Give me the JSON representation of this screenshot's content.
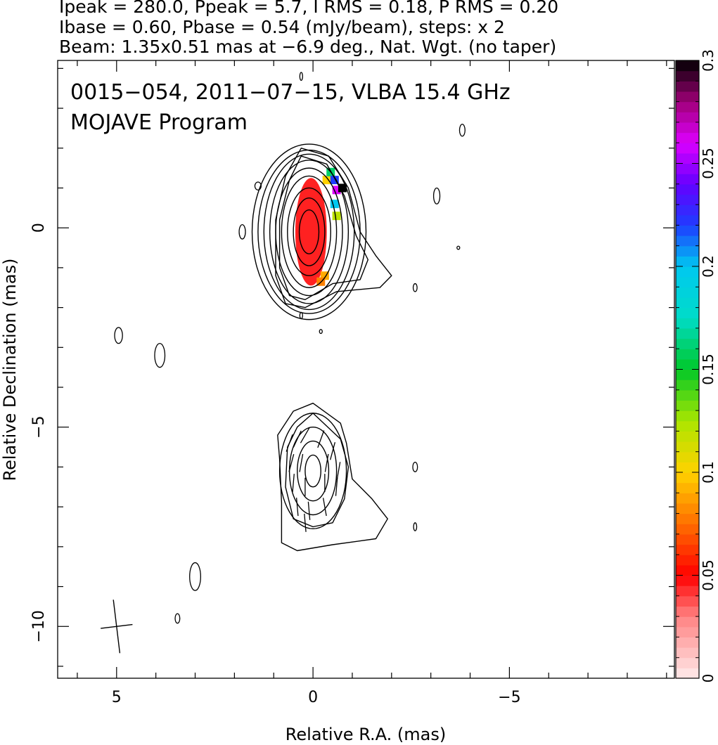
{
  "header": {
    "line1": "Ipeak = 280.0, Ppeak = 5.7, I RMS = 0.18, P RMS = 0.20",
    "line2": "Ibase = 0.60, Pbase = 0.54 (mJy/beam), steps: x 2",
    "line3": "Beam: 1.35x0.51 mas at −6.9 deg., Nat. Wgt. (no taper)"
  },
  "annotation": {
    "line1": "0015−054, 2011−07−15, VLBA 15.4 GHz",
    "line2": "MOJAVE Program"
  },
  "colorbar": {
    "min": 0,
    "max": 0.3,
    "tick_labels": [
      "0",
      "0.05",
      "0.1",
      "0.15",
      "0.2",
      "0.25",
      "0.3"
    ],
    "tick_values": [
      0,
      0.05,
      0.1,
      0.15,
      0.2,
      0.25,
      0.3
    ]
  },
  "chart_data": {
    "type": "contour",
    "xlabel": "Relative R.A. (mas)",
    "ylabel": "Relative Declination (mas)",
    "xlim": [
      6.5,
      -9.2
    ],
    "ylim": [
      -11.3,
      4.2
    ],
    "x_ticks": [
      5,
      0,
      -5
    ],
    "x_tick_labels": [
      "5",
      "0",
      "−5"
    ],
    "y_ticks": [
      0,
      -5,
      -10
    ],
    "y_tick_labels": [
      "0",
      "−5",
      "−10"
    ],
    "components": [
      {
        "name": "core",
        "center": [
          0.1,
          -0.1
        ],
        "contours": [
          {
            "rx": 0.25,
            "ry": 0.55
          },
          {
            "rx": 0.4,
            "ry": 0.85
          },
          {
            "rx": 0.55,
            "ry": 1.1
          },
          {
            "rx": 0.7,
            "ry": 1.4
          },
          {
            "rx": 0.85,
            "ry": 1.6
          },
          {
            "rx": 1.0,
            "ry": 1.8
          },
          {
            "rx": 1.15,
            "ry": 1.95
          },
          {
            "rx": 1.3,
            "ry": 2.05
          },
          {
            "rx": 1.45,
            "ry": 2.2
          }
        ],
        "outer_contours": [
          [
            [
              0.3,
              2.0
            ],
            [
              -0.4,
              1.8
            ],
            [
              -0.9,
              1.0
            ],
            [
              -1.2,
              -0.1
            ],
            [
              -1.6,
              -0.7
            ],
            [
              -2.0,
              -1.2
            ],
            [
              -1.7,
              -1.5
            ],
            [
              -0.6,
              -1.6
            ],
            [
              0.2,
              -2.0
            ],
            [
              0.7,
              -1.9
            ],
            [
              0.95,
              -1.2
            ],
            [
              0.95,
              0.2
            ],
            [
              0.7,
              1.3
            ]
          ],
          [
            [
              0.3,
              1.8
            ],
            [
              -0.35,
              1.6
            ],
            [
              -0.8,
              0.8
            ],
            [
              -1.1,
              -0.2
            ],
            [
              -1.4,
              -0.8
            ],
            [
              -1.2,
              -1.3
            ],
            [
              -0.5,
              -1.4
            ],
            [
              0.2,
              -1.8
            ],
            [
              0.6,
              -1.7
            ],
            [
              0.85,
              -1.0
            ],
            [
              0.85,
              0.2
            ],
            [
              0.6,
              1.2
            ]
          ]
        ],
        "polarization_pixels": [
          {
            "x": 0.1,
            "y": -0.2,
            "value": 0.03,
            "rx": 0.3,
            "ry": 1.0
          },
          {
            "x": 0.05,
            "y": -0.1,
            "value": 0.045,
            "rx": 0.4,
            "ry": 1.35
          }
        ],
        "polarization_edge": [
          {
            "x": -0.35,
            "y": 1.2,
            "value": 0.1
          },
          {
            "x": -0.45,
            "y": 1.4,
            "value": 0.16
          },
          {
            "x": -0.55,
            "y": 1.2,
            "value": 0.22
          },
          {
            "x": -0.6,
            "y": 0.95,
            "value": 0.26
          },
          {
            "x": -0.75,
            "y": 1.0,
            "value": 0.3
          },
          {
            "x": -0.55,
            "y": 0.6,
            "value": 0.2
          },
          {
            "x": -0.6,
            "y": 0.3,
            "value": 0.12
          },
          {
            "x": -0.3,
            "y": -1.2,
            "value": 0.09
          },
          {
            "x": -0.2,
            "y": -1.35,
            "value": 0.08
          }
        ]
      },
      {
        "name": "jet",
        "center": [
          0.0,
          -6.1
        ],
        "contours": [
          {
            "rx": 0.2,
            "ry": 0.4
          },
          {
            "rx": 0.4,
            "ry": 0.75
          },
          {
            "rx": 0.6,
            "ry": 1.1
          },
          {
            "rx": 0.85,
            "ry": 1.45
          }
        ],
        "outer_contours": [
          [
            [
              0.0,
              -4.4
            ],
            [
              -0.7,
              -4.9
            ],
            [
              -0.85,
              -5.4
            ],
            [
              -1.0,
              -6.3
            ],
            [
              -1.5,
              -6.8
            ],
            [
              -1.9,
              -7.3
            ],
            [
              -1.6,
              -7.8
            ],
            [
              -0.5,
              -7.95
            ],
            [
              0.4,
              -8.1
            ],
            [
              0.8,
              -7.9
            ],
            [
              0.8,
              -6.9
            ],
            [
              0.85,
              -5.8
            ],
            [
              0.9,
              -5.2
            ],
            [
              0.5,
              -4.6
            ]
          ],
          [
            [
              0.0,
              -4.65
            ],
            [
              -0.7,
              -5.3
            ],
            [
              -0.9,
              -6.0
            ],
            [
              -0.8,
              -6.8
            ],
            [
              -0.5,
              -7.4
            ],
            [
              0.0,
              -7.5
            ],
            [
              0.5,
              -7.3
            ],
            [
              0.7,
              -6.5
            ],
            [
              0.65,
              -5.5
            ],
            [
              0.4,
              -5.0
            ]
          ]
        ],
        "evpa_vectors": [
          {
            "x": 0.6,
            "y": -5.4,
            "angle": 20
          },
          {
            "x": 0.4,
            "y": -5.3,
            "angle": 25
          },
          {
            "x": 0.2,
            "y": -5.2,
            "angle": 30
          },
          {
            "x": -0.2,
            "y": -5.3,
            "angle": 20
          },
          {
            "x": -0.5,
            "y": -5.6,
            "angle": 15
          },
          {
            "x": 0.55,
            "y": -5.9,
            "angle": 15
          },
          {
            "x": 0.3,
            "y": -5.9,
            "angle": 10
          },
          {
            "x": -0.35,
            "y": -5.9,
            "angle": 10
          },
          {
            "x": -0.65,
            "y": -6.1,
            "angle": 10
          },
          {
            "x": 0.5,
            "y": -6.4,
            "angle": 5
          },
          {
            "x": 0.2,
            "y": -6.5,
            "angle": 0
          },
          {
            "x": -0.3,
            "y": -6.4,
            "angle": 0
          },
          {
            "x": -0.6,
            "y": -6.5,
            "angle": 5
          },
          {
            "x": 0.4,
            "y": -7.0,
            "angle": -5
          },
          {
            "x": 0.1,
            "y": -7.1,
            "angle": -5
          },
          {
            "x": -0.3,
            "y": -7.0,
            "angle": -10
          },
          {
            "x": 0.2,
            "y": -7.4,
            "angle": -5
          }
        ]
      }
    ],
    "noise_blobs": [
      {
        "x": 0.3,
        "y": 3.8,
        "rx": 0.03,
        "ry": 0.1
      },
      {
        "x": -3.8,
        "y": 2.45,
        "rx": 0.07,
        "ry": 0.15
      },
      {
        "x": 1.4,
        "y": 1.05,
        "rx": 0.08,
        "ry": 0.1
      },
      {
        "x": -3.15,
        "y": 0.8,
        "rx": 0.08,
        "ry": 0.2
      },
      {
        "x": 1.8,
        "y": -0.1,
        "rx": 0.08,
        "ry": 0.18
      },
      {
        "x": -3.7,
        "y": -0.5,
        "rx": 0.02,
        "ry": 0.04
      },
      {
        "x": -2.6,
        "y": -1.5,
        "rx": 0.05,
        "ry": 0.1
      },
      {
        "x": 0.3,
        "y": -2.2,
        "rx": 0.03,
        "ry": 0.08
      },
      {
        "x": -0.2,
        "y": -2.6,
        "rx": 0.02,
        "ry": 0.05
      },
      {
        "x": 4.95,
        "y": -2.7,
        "rx": 0.1,
        "ry": 0.2
      },
      {
        "x": 3.9,
        "y": -3.2,
        "rx": 0.13,
        "ry": 0.3
      },
      {
        "x": -2.6,
        "y": -6.0,
        "rx": 0.06,
        "ry": 0.12
      },
      {
        "x": -2.6,
        "y": -7.5,
        "rx": 0.04,
        "ry": 0.1
      },
      {
        "x": 3.0,
        "y": -8.75,
        "rx": 0.14,
        "ry": 0.35
      },
      {
        "x": 3.45,
        "y": -9.8,
        "rx": 0.06,
        "ry": 0.12
      }
    ],
    "beam": {
      "x": 5.0,
      "y": -10.0,
      "major": 1.35,
      "minor": 0.51,
      "pa": -6.9
    }
  }
}
